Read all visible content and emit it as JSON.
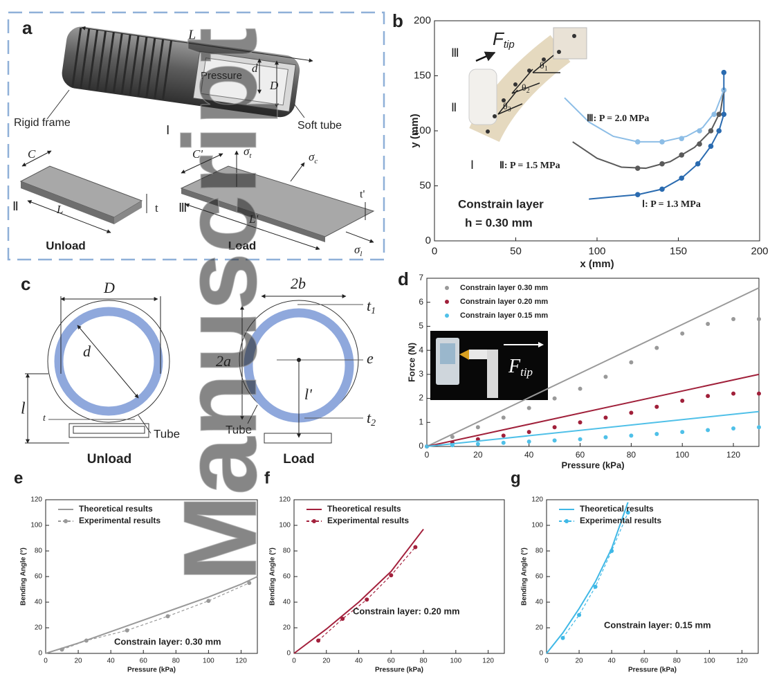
{
  "panel_a": {
    "label": "a",
    "length": "L",
    "pressure": "Pressure",
    "inner_diameter": "d",
    "outer_diameter": "D",
    "rigid_frame": "Rigid frame",
    "soft_tube": "Soft tube",
    "stage_1": "Ⅰ",
    "stage_2": "Ⅱ",
    "stage_3": "Ⅲ",
    "width": "C",
    "length_unload": "L",
    "thickness": "t",
    "unload": "Unload",
    "width_load": "C'",
    "stress_t": {
      "symbol": "σ",
      "sub": "t"
    },
    "stress_c": {
      "symbol": "σ",
      "sub": "c"
    },
    "stress_l": {
      "symbol": "σ",
      "sub": "l"
    },
    "thickness_load": "t'",
    "length_load": "L'",
    "load": "Load"
  },
  "panel_b_inset": {
    "force": {
      "symbol": "F",
      "sub": "tip"
    },
    "angles": [
      {
        "symbol": "θ",
        "sub": "1"
      },
      {
        "symbol": "θ",
        "sub": "2"
      },
      {
        "symbol": "θ",
        "sub": "3"
      }
    ],
    "stages": [
      "Ⅲ",
      "Ⅱ",
      "Ⅰ"
    ]
  },
  "panel_c": {
    "label": "c",
    "unload": {
      "outer_diameter": "D",
      "inner_diameter": "d",
      "distance": "l",
      "thickness": "t",
      "tube": "Tube",
      "caption": "Unload"
    },
    "load": {
      "width": "2b",
      "height": "2a",
      "thickness_top": {
        "symbol": "t",
        "sub": "1"
      },
      "eccentricity": "e",
      "distance": "l'",
      "thickness_bottom": {
        "symbol": "t",
        "sub": "2"
      },
      "tube": "Tube",
      "caption": "Load"
    }
  },
  "panel_d_inset": {
    "force": {
      "symbol": "F",
      "sub": "tip"
    }
  },
  "watermark": "Manuscript",
  "chart_data": [
    {
      "label": "b",
      "type": "line",
      "xlabel": "x (mm)",
      "ylabel": "y (mm)",
      "xlim": [
        0,
        200
      ],
      "ylim": [
        0,
        200
      ],
      "xticks": [
        0,
        50,
        100,
        150,
        200
      ],
      "yticks": [
        0,
        50,
        100,
        150,
        200
      ],
      "series": [
        {
          "name": "Ⅰ: P = 1.3 MPa",
          "color": "#2a6bb0",
          "mode": "markers",
          "x": [
            125,
            140,
            152,
            162,
            170,
            175,
            178,
            178
          ],
          "values": [
            42,
            47,
            57,
            70,
            86,
            100,
            115,
            153
          ]
        },
        {
          "name": "Ⅱ: P = 1.5 MPa",
          "color": "#5a5a5a",
          "mode": "markers",
          "x": [
            125,
            140,
            152,
            163,
            170,
            175,
            178
          ],
          "values": [
            66,
            70,
            78,
            88,
            100,
            115,
            137
          ]
        },
        {
          "name": "Ⅲ: P = 2.0 MPa",
          "color": "#8cbde6",
          "mode": "markers",
          "x": [
            125,
            140,
            152,
            163,
            172,
            178
          ],
          "values": [
            90,
            90,
            93,
            100,
            115,
            137
          ]
        },
        {
          "color": "#2a6bb0",
          "mode": "lines",
          "x": [
            95,
            110,
            125,
            140,
            152,
            162,
            170,
            175,
            178,
            178
          ],
          "values": [
            38,
            40,
            42,
            47,
            57,
            70,
            86,
            100,
            115,
            153
          ]
        },
        {
          "color": "#5a5a5a",
          "mode": "lines",
          "x": [
            85,
            100,
            115,
            130,
            145,
            160,
            170,
            176,
            178
          ],
          "values": [
            90,
            75,
            67,
            66,
            72,
            85,
            100,
            118,
            137
          ]
        },
        {
          "color": "#8cbde6",
          "mode": "lines",
          "x": [
            80,
            95,
            110,
            125,
            140,
            155,
            165,
            173,
            178
          ],
          "values": [
            130,
            108,
            95,
            90,
            90,
            95,
            103,
            118,
            137
          ]
        }
      ],
      "annotations": [
        "Constrain layer",
        "h = 0.30 mm"
      ]
    },
    {
      "label": "d",
      "type": "line",
      "xlabel": "Pressure (kPa)",
      "ylabel": "Force (N)",
      "xlim": [
        0,
        130
      ],
      "ylim": [
        0,
        7
      ],
      "xticks": [
        0,
        20,
        40,
        60,
        80,
        100,
        120
      ],
      "yticks": [
        0,
        1,
        2,
        3,
        4,
        5,
        6,
        7
      ],
      "legend": "upper left",
      "series": [
        {
          "name": "Constrain layer 0.30 mm",
          "color": "#999999",
          "mode": "markers",
          "x": [
            0,
            10,
            20,
            30,
            40,
            50,
            60,
            70,
            80,
            90,
            100,
            110,
            120,
            130
          ],
          "values": [
            0,
            0.4,
            0.8,
            1.2,
            1.6,
            2.0,
            2.4,
            2.9,
            3.5,
            4.1,
            4.7,
            5.1,
            5.3,
            5.3
          ]
        },
        {
          "name": "Constrain layer 0.20 mm",
          "color": "#a0203a",
          "mode": "markers",
          "x": [
            0,
            10,
            20,
            30,
            40,
            50,
            60,
            70,
            80,
            90,
            100,
            110,
            120,
            130
          ],
          "values": [
            0,
            0.15,
            0.3,
            0.45,
            0.6,
            0.8,
            1.0,
            1.2,
            1.4,
            1.65,
            1.9,
            2.1,
            2.2,
            2.2
          ]
        },
        {
          "name": "Constrain layer 0.15 mm",
          "color": "#4fc0e8",
          "mode": "markers",
          "x": [
            0,
            10,
            20,
            30,
            40,
            50,
            60,
            70,
            80,
            90,
            100,
            110,
            120,
            130
          ],
          "values": [
            0,
            0.05,
            0.1,
            0.15,
            0.2,
            0.25,
            0.3,
            0.38,
            0.45,
            0.52,
            0.6,
            0.68,
            0.75,
            0.8
          ]
        },
        {
          "color": "#999999",
          "mode": "lines",
          "x": [
            0,
            130
          ],
          "values": [
            0,
            6.6
          ]
        },
        {
          "color": "#a0203a",
          "mode": "lines",
          "x": [
            0,
            130
          ],
          "values": [
            0,
            3.0
          ]
        },
        {
          "color": "#4fc0e8",
          "mode": "lines",
          "x": [
            0,
            130
          ],
          "values": [
            0,
            1.45
          ]
        }
      ]
    },
    {
      "label": "e",
      "type": "line",
      "xlabel": "Pressure (kPa)",
      "ylabel": "Bending Angle (°)",
      "xlim": [
        0,
        130
      ],
      "ylim": [
        0,
        120
      ],
      "xticks": [
        0,
        20,
        40,
        60,
        80,
        100,
        120
      ],
      "yticks": [
        0,
        20,
        40,
        60,
        80,
        100,
        120
      ],
      "legend": "upper left",
      "series": [
        {
          "name": "Theoretical results",
          "color": "#999999",
          "mode": "lines",
          "x": [
            0,
            20,
            40,
            60,
            80,
            100,
            120,
            130
          ],
          "values": [
            0,
            8,
            17,
            26,
            35,
            44,
            54,
            60
          ]
        },
        {
          "name": "Experimental results",
          "color": "#999999",
          "mode": "lines+markers",
          "dash": true,
          "x": [
            10,
            25,
            50,
            75,
            100,
            125
          ],
          "values": [
            3,
            10,
            18,
            29,
            41,
            55
          ]
        }
      ],
      "annotations": [
        "Constrain layer: 0.30 mm"
      ]
    },
    {
      "label": "f",
      "type": "line",
      "xlabel": "Pressure (kPa)",
      "ylabel": "Bending Angle (°)",
      "xlim": [
        0,
        130
      ],
      "ylim": [
        0,
        120
      ],
      "xticks": [
        0,
        20,
        40,
        60,
        80,
        100,
        120
      ],
      "yticks": [
        0,
        20,
        40,
        60,
        80,
        100,
        120
      ],
      "legend": "upper left",
      "series": [
        {
          "name": "Theoretical results",
          "color": "#a3203c",
          "mode": "lines",
          "x": [
            0,
            20,
            40,
            60,
            80
          ],
          "values": [
            0,
            19,
            40,
            64,
            97
          ]
        },
        {
          "name": "Experimental results",
          "color": "#a3203c",
          "mode": "lines+markers",
          "dash": true,
          "x": [
            15,
            30,
            45,
            60,
            75
          ],
          "values": [
            10,
            27,
            42,
            61,
            83
          ]
        }
      ],
      "annotations": [
        "Constrain layer: 0.20 mm"
      ]
    },
    {
      "label": "g",
      "type": "line",
      "xlabel": "Pressure (kPa)",
      "ylabel": "Bending Angle (°)",
      "xlim": [
        0,
        130
      ],
      "ylim": [
        0,
        120
      ],
      "xticks": [
        0,
        20,
        40,
        60,
        80,
        100,
        120
      ],
      "yticks": [
        0,
        20,
        40,
        60,
        80,
        100,
        120
      ],
      "legend": "upper left",
      "series": [
        {
          "name": "Theoretical results",
          "color": "#3fb8e6",
          "mode": "lines",
          "x": [
            0,
            10,
            20,
            30,
            40,
            50
          ],
          "values": [
            0,
            16,
            35,
            56,
            82,
            118
          ]
        },
        {
          "name": "Experimental results",
          "color": "#3fb8e6",
          "mode": "lines+markers",
          "dash": true,
          "x": [
            10,
            20,
            30,
            40,
            50
          ],
          "values": [
            12,
            30,
            52,
            80,
            110
          ]
        }
      ],
      "annotations": [
        "Constrain layer: 0.15 mm"
      ]
    }
  ]
}
